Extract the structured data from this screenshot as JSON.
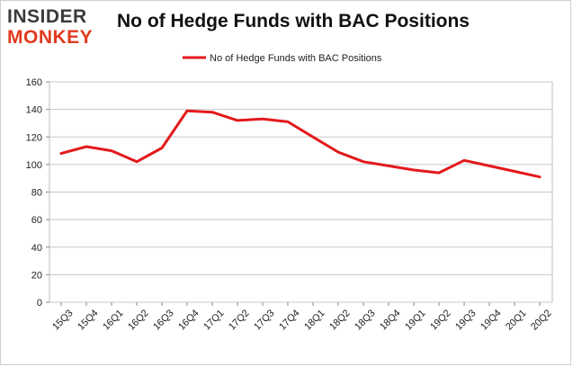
{
  "brand": {
    "logo_top": "INSIDER",
    "logo_bottom": "MONKEY"
  },
  "chart_data": {
    "type": "line",
    "title": "No of Hedge Funds with BAC Positions",
    "xlabel": "",
    "ylabel": "",
    "ylim": [
      0,
      160
    ],
    "yticks": [
      0,
      20,
      40,
      60,
      80,
      100,
      120,
      140,
      160
    ],
    "grid": true,
    "legend_position": "top",
    "categories": [
      "15Q3",
      "15Q4",
      "16Q1",
      "16Q2",
      "16Q3",
      "16Q4",
      "17Q1",
      "17Q2",
      "17Q3",
      "17Q4",
      "18Q1",
      "18Q2",
      "18Q3",
      "18Q4",
      "19Q1",
      "19Q2",
      "19Q3",
      "19Q4",
      "20Q1",
      "20Q2"
    ],
    "series": [
      {
        "name": "No of Hedge Funds with BAC Positions",
        "color": "#e31a1c",
        "values": [
          108,
          113,
          110,
          102,
          112,
          139,
          138,
          132,
          133,
          131,
          120,
          109,
          102,
          99,
          96,
          94,
          103,
          99,
          95,
          91
        ]
      }
    ]
  }
}
